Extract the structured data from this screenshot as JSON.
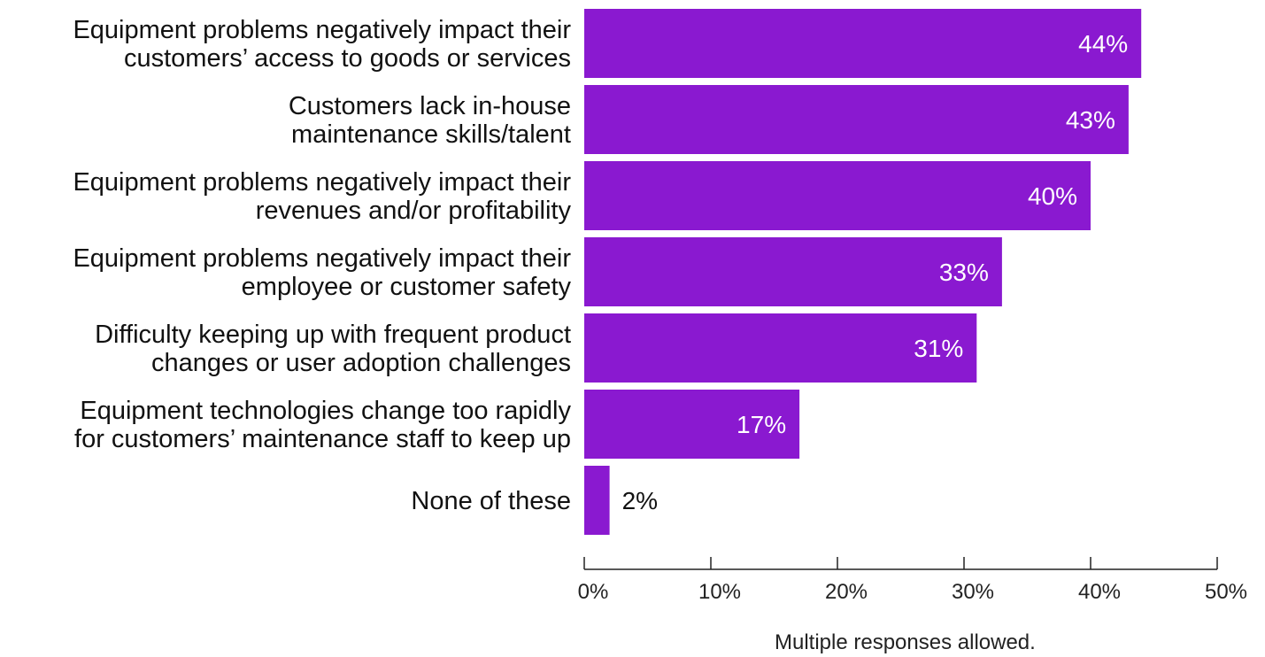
{
  "chart_data": {
    "type": "bar",
    "orientation": "horizontal",
    "categories": [
      [
        "Equipment problems negatively impact their",
        "customers’ access to goods or services"
      ],
      [
        "Customers lack in-house",
        "maintenance skills/talent"
      ],
      [
        "Equipment problems negatively impact their",
        "revenues and/or profitability"
      ],
      [
        "Equipment problems negatively impact their",
        "employee or customer safety"
      ],
      [
        "Difficulty keeping up with frequent product",
        "changes or user adoption challenges"
      ],
      [
        "Equipment technologies change too rapidly",
        "for customers’ maintenance staff to keep up"
      ],
      [
        "None of these"
      ]
    ],
    "values": [
      44,
      43,
      40,
      33,
      31,
      17,
      2
    ],
    "value_labels": [
      "44%",
      "43%",
      "40%",
      "33%",
      "31%",
      "17%",
      "2%"
    ],
    "xlim": [
      0,
      50
    ],
    "x_ticks": [
      0,
      10,
      20,
      30,
      40,
      50
    ],
    "x_tick_labels": [
      "0%",
      "10%",
      "20%",
      "30%",
      "40%",
      "50%"
    ],
    "grid": false,
    "bar_color": "#8a19d0",
    "label_color_inside": "#ffffff",
    "label_color_outside": "#111111"
  },
  "footnote": "Multiple responses allowed."
}
